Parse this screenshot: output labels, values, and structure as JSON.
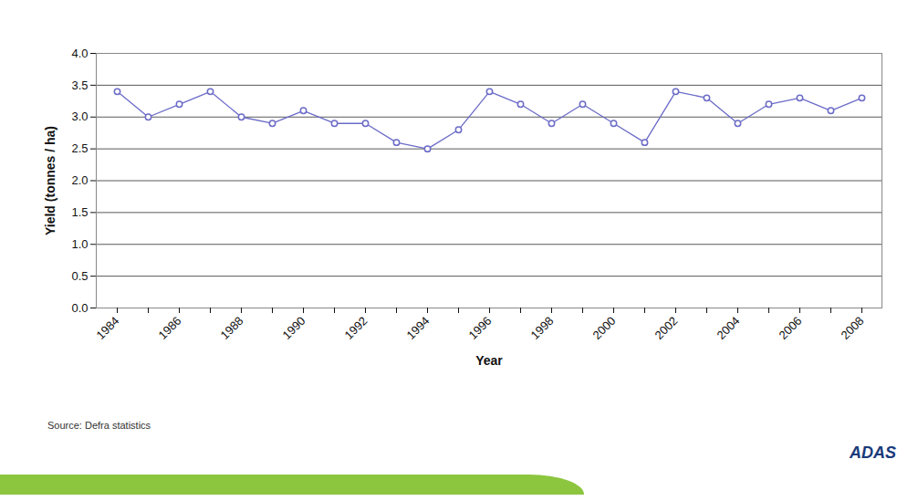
{
  "chart_data": {
    "type": "line",
    "x_label": "Year",
    "y_label": "Yield (tonnes / ha)",
    "source": "Source: Defra statistics",
    "logo": "ADAS",
    "categories": [
      "1984",
      null,
      "1986",
      null,
      "1988",
      null,
      "1990",
      null,
      "1992",
      null,
      "1994",
      null,
      "1996",
      null,
      "1998",
      null,
      "2000",
      null,
      "2002",
      null,
      "2004",
      null,
      "2006",
      null,
      "2008"
    ],
    "values": [
      3.4,
      3.0,
      3.2,
      3.4,
      3.0,
      2.9,
      3.1,
      2.9,
      2.9,
      2.6,
      2.5,
      2.8,
      3.4,
      3.2,
      2.9,
      3.2,
      2.9,
      2.6,
      3.4,
      3.3,
      2.9,
      3.2,
      3.3,
      3.1,
      3.3
    ],
    "color": "#6b6bc8",
    "marker": "circle",
    "ylim": [
      0,
      4
    ],
    "yticks": [
      {
        "value": 0,
        "label": "0.0"
      },
      0.5,
      {
        "value": 1,
        "label": "1.0"
      },
      1.5,
      {
        "value": 2,
        "label": "2.0"
      },
      2.5,
      {
        "value": 3,
        "label": "3.0"
      },
      3.5,
      {
        "value": 4,
        "label": "4.0"
      }
    ],
    "grid": true
  }
}
